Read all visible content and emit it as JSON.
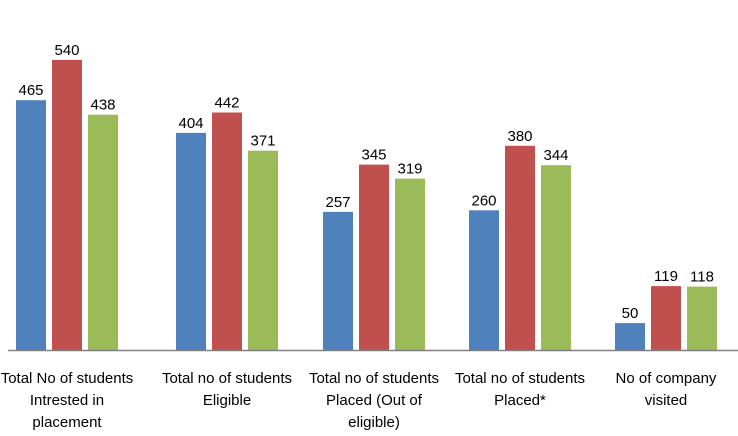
{
  "chart_data": {
    "type": "bar",
    "categories": [
      [
        "Total No of students",
        "Intrested in",
        "placement"
      ],
      [
        "Total no of students",
        "Eligible"
      ],
      [
        "Total no of students",
        "Placed (Out of",
        "eligible)"
      ],
      [
        "Total no of students",
        "Placed*"
      ],
      [
        "No of company",
        "visited"
      ]
    ],
    "series": [
      {
        "values": [
          465,
          404,
          257,
          260,
          50
        ],
        "color": "#4F81BD"
      },
      {
        "values": [
          540,
          442,
          345,
          380,
          119
        ],
        "color": "#C0504D"
      },
      {
        "values": [
          438,
          371,
          319,
          344,
          118
        ],
        "color": "#9BBB59"
      }
    ],
    "ylim": [
      0,
      600
    ],
    "grid": false,
    "legend": "none",
    "data_labels": true
  }
}
